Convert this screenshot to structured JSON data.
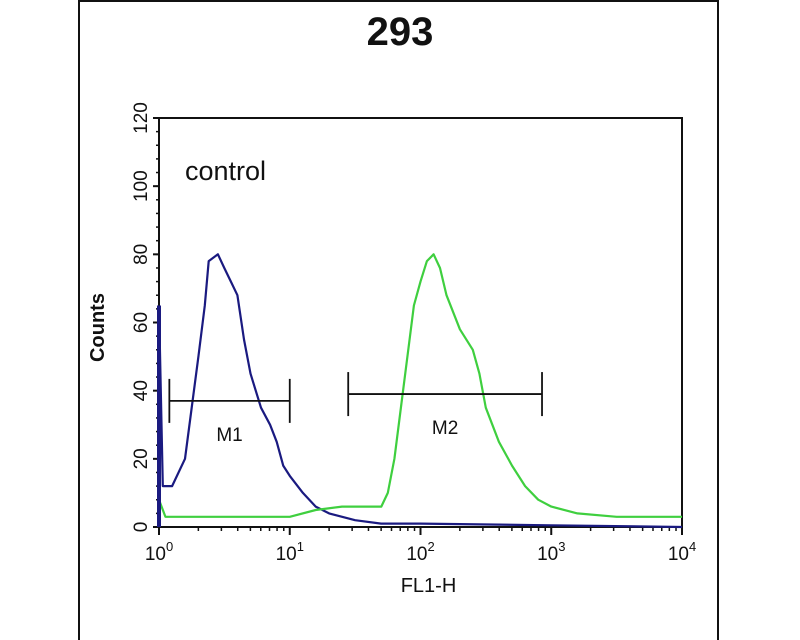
{
  "chart_data": {
    "type": "line",
    "title": "293",
    "xlabel": "FL1-H",
    "ylabel": "Counts",
    "x_scale": "log",
    "xlim": [
      1,
      10000
    ],
    "ylim": [
      0,
      120
    ],
    "x_ticks": [
      {
        "base": "10",
        "exp": "0",
        "value": 1
      },
      {
        "base": "10",
        "exp": "1",
        "value": 10
      },
      {
        "base": "10",
        "exp": "2",
        "value": 100
      },
      {
        "base": "10",
        "exp": "3",
        "value": 1000
      },
      {
        "base": "10",
        "exp": "4",
        "value": 10000
      }
    ],
    "y_ticks": [
      "0",
      "20",
      "40",
      "60",
      "80",
      "100",
      "120"
    ],
    "annotation": "control",
    "grid": false,
    "series": [
      {
        "color": "#1a1a80",
        "x": [
          1,
          1.07,
          1.26,
          1.58,
          1.78,
          2.0,
          2.24,
          2.4,
          2.82,
          3.16,
          3.55,
          3.98,
          4.47,
          5.01,
          6.03,
          7.08,
          7.94,
          8.91,
          10,
          12.6,
          15.8,
          20,
          31.6,
          50,
          100,
          1000,
          10000
        ],
        "y": [
          65,
          12,
          12,
          20,
          35,
          50,
          65,
          78,
          80,
          76,
          72,
          68,
          55,
          45,
          35,
          30,
          25,
          18,
          15,
          10,
          6,
          4,
          2,
          1,
          1,
          0.5,
          0
        ]
      },
      {
        "color": "#3fcf3f",
        "x": [
          1,
          1.12,
          3.16,
          10,
          15.8,
          25.1,
          50.1,
          56.2,
          63.1,
          70.8,
          79.4,
          89.1,
          100,
          112,
          126,
          141,
          158,
          200,
          251,
          282,
          316,
          398,
          501,
          631,
          794,
          1000,
          1585,
          3162,
          10000
        ],
        "y": [
          8,
          3,
          3,
          3,
          5,
          6,
          6,
          10,
          20,
          35,
          50,
          65,
          72,
          78,
          80,
          76,
          68,
          58,
          52,
          45,
          35,
          25,
          18,
          12,
          8,
          6,
          4,
          3,
          3
        ]
      }
    ],
    "markers": [
      {
        "label": "M1",
        "x_start": 1.2,
        "x_end": 10,
        "y": 37
      },
      {
        "label": "M2",
        "x_start": 28,
        "x_end": 850,
        "y": 39
      }
    ]
  }
}
